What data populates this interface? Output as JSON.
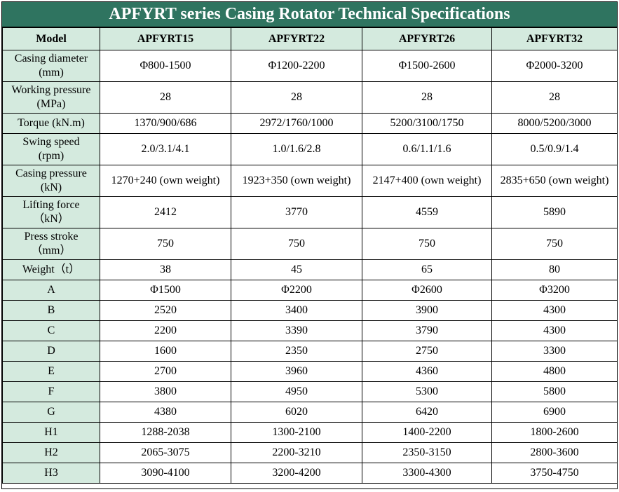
{
  "title": "APFYRT series Casing Rotator Technical Specifications",
  "colors": {
    "title_bg": "#2f7460",
    "title_fg": "#ffffff",
    "label_bg": "#d4eade"
  },
  "header": [
    "Model",
    "APFYRT15",
    "APFYRT22",
    "APFYRT26",
    "APFYRT32"
  ],
  "rows": [
    {
      "label": [
        "Casing diameter",
        "(mm)"
      ],
      "values": [
        "Φ800-1500",
        "Φ1200-2200",
        "Φ1500-2600",
        "Φ2000-3200"
      ]
    },
    {
      "label": [
        "Working pressure",
        "(MPa)"
      ],
      "values": [
        "28",
        "28",
        "28",
        "28"
      ]
    },
    {
      "label": [
        "Torque (kN.m)"
      ],
      "values": [
        "1370/900/686",
        "2972/1760/1000",
        "5200/3100/1750",
        "8000/5200/3000"
      ]
    },
    {
      "label": [
        "Swing speed",
        "(rpm)"
      ],
      "values": [
        "2.0/3.1/4.1",
        "1.0/1.6/2.8",
        "0.6/1.1/1.6",
        "0.5/0.9/1.4"
      ]
    },
    {
      "label": [
        "Casing pressure",
        "(kN)"
      ],
      "values": [
        "1270+240 (own weight)",
        "1923+350 (own weight)",
        "2147+400 (own weight)",
        "2835+650 (own weight)"
      ]
    },
    {
      "label": [
        "Lifting force",
        "（kN）"
      ],
      "values": [
        "2412",
        "3770",
        "4559",
        "5890"
      ]
    },
    {
      "label": [
        "Press stroke",
        "（mm）"
      ],
      "values": [
        "750",
        "750",
        "750",
        "750"
      ]
    },
    {
      "label": [
        "Weight（t）"
      ],
      "values": [
        "38",
        "45",
        "65",
        "80"
      ]
    },
    {
      "label": [
        "A"
      ],
      "values": [
        "Φ1500",
        "Φ2200",
        "Φ2600",
        "Φ3200"
      ]
    },
    {
      "label": [
        "B"
      ],
      "values": [
        "2520",
        "3400",
        "3900",
        "4300"
      ]
    },
    {
      "label": [
        "C"
      ],
      "values": [
        "2200",
        "3390",
        "3790",
        "4300"
      ]
    },
    {
      "label": [
        "D"
      ],
      "values": [
        "1600",
        "2350",
        "2750",
        "3300"
      ]
    },
    {
      "label": [
        "E"
      ],
      "values": [
        "2700",
        "3960",
        "4360",
        "4800"
      ]
    },
    {
      "label": [
        "F"
      ],
      "values": [
        "3800",
        "4950",
        "5300",
        "5800"
      ]
    },
    {
      "label": [
        "G"
      ],
      "values": [
        "4380",
        "6020",
        "6420",
        "6900"
      ]
    },
    {
      "label": [
        "H1"
      ],
      "values": [
        "1288-2038",
        "1300-2100",
        "1400-2200",
        "1800-2600"
      ]
    },
    {
      "label": [
        "H2"
      ],
      "values": [
        "2065-3075",
        "2200-3210",
        "2350-3150",
        "2800-3600"
      ]
    },
    {
      "label": [
        "H3"
      ],
      "values": [
        "3090-4100",
        "3200-4200",
        "3300-4300",
        "3750-4750"
      ]
    }
  ]
}
